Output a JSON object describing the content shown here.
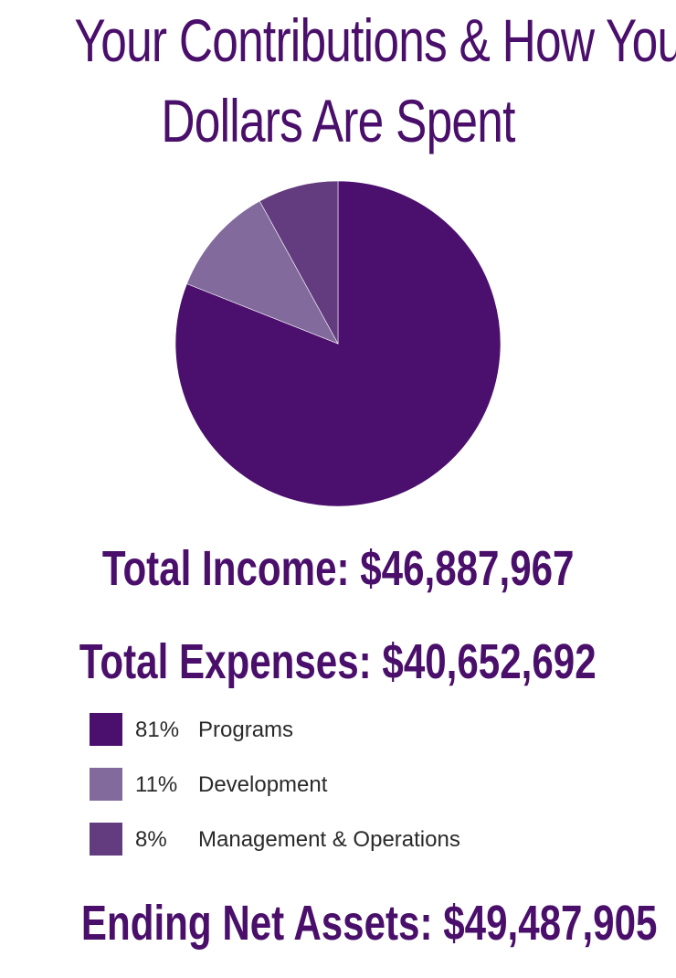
{
  "title_line1": "Your Contributions & How Your",
  "title_line2": "Dollars Are Spent",
  "total_income": "Total Income: $46,887,967",
  "total_expenses": "Total Expenses: $40,652,692",
  "ending_net_assets": "Ending Net Assets: $49,487,905",
  "chart_data": {
    "type": "pie",
    "title": "Your Contributions & How Your Dollars Are Spent",
    "slices": [
      {
        "label": "Programs",
        "value": 81,
        "display": "81%",
        "color": "#4b0f6d"
      },
      {
        "label": "Development",
        "value": 11,
        "display": "11%",
        "color": "#826a9c"
      },
      {
        "label": "Management & Operations",
        "value": 8,
        "display": "8%",
        "color": "#633c80"
      }
    ],
    "start_angle": "12 o'clock",
    "direction": "clockwise",
    "legend_position": "bottom-left"
  }
}
